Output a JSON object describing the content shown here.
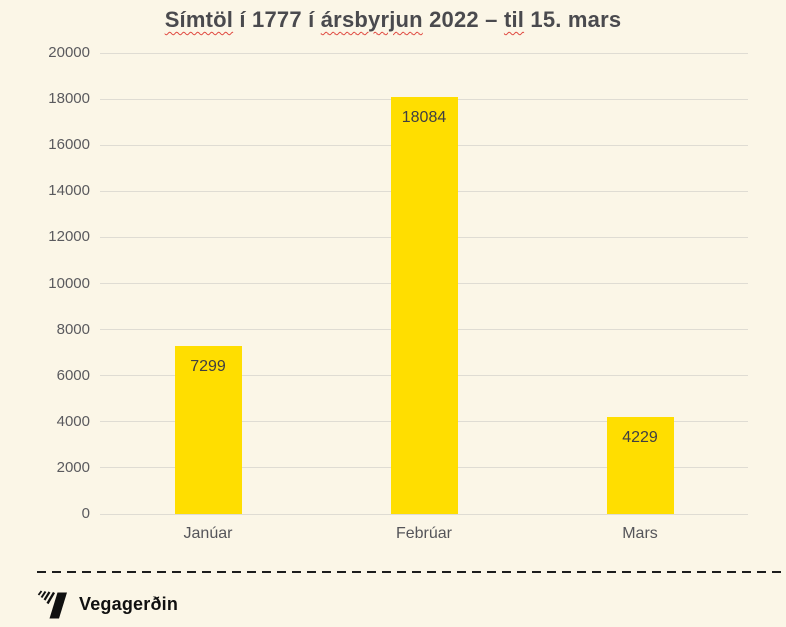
{
  "title": {
    "full_text": "Símtöl í 1777 í ársbyrjun 2022 – til 15. mars",
    "segments": [
      {
        "text": "Símtöl",
        "misspelled": true
      },
      {
        "text": " í 1777 í ",
        "misspelled": false
      },
      {
        "text": "ársbyrjun",
        "misspelled": true
      },
      {
        "text": " 2022 – ",
        "misspelled": false
      },
      {
        "text": "til",
        "misspelled": true
      },
      {
        "text": " 15. mars",
        "misspelled": false
      }
    ]
  },
  "chart_data": {
    "type": "bar",
    "title": "Símtöl í 1777 í ársbyrjun 2022 – til 15. mars",
    "categories": [
      "Janúar",
      "Febrúar",
      "Mars"
    ],
    "values": [
      7299,
      18084,
      4229
    ],
    "xlabel": "",
    "ylabel": "",
    "ylim": [
      0,
      20000
    ],
    "yticks": [
      0,
      2000,
      4000,
      6000,
      8000,
      10000,
      12000,
      14000,
      16000,
      18000,
      20000
    ],
    "grid": true,
    "legend": "none",
    "value_labels_position": "inside-top",
    "bar_color": "#FFDE00"
  },
  "colors": {
    "background": "#FBF6E7",
    "bar": "#FFDE00",
    "title_text": "#4A4A4E",
    "axis_text": "#5A5A5E",
    "value_text": "#3F3F42",
    "gridline": "#DFDCD3",
    "spellcheck_squiggle": "#E0483F",
    "brand_black": "#101010"
  },
  "footer": {
    "brand": "Vegagerðin"
  }
}
